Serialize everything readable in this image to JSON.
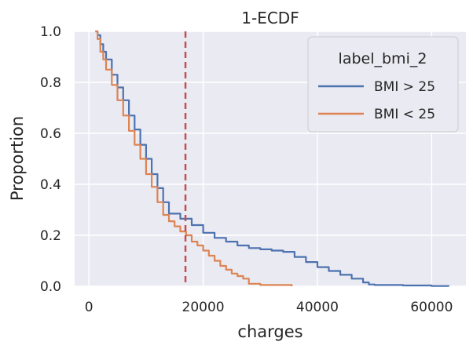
{
  "chart_data": {
    "type": "line",
    "title": "1-ECDF",
    "xlabel": "charges",
    "ylabel": "Proportion",
    "xlim": [
      -2500,
      66000
    ],
    "ylim": [
      0.0,
      1.0
    ],
    "xticks": [
      0,
      20000,
      40000,
      60000
    ],
    "yticks": [
      0.0,
      0.2,
      0.4,
      0.6,
      0.8,
      1.0
    ],
    "xtick_labels": [
      "0",
      "20000",
      "40000",
      "60000"
    ],
    "ytick_labels": [
      "0.0",
      "0.2",
      "0.4",
      "0.6",
      "0.8",
      "1.0"
    ],
    "grid": true,
    "legend": {
      "title": "label_bmi_2",
      "placement": "top-right"
    },
    "vline": {
      "x": 16900,
      "color": "#c44e52",
      "style": "dashed"
    },
    "series": [
      {
        "name": "BMI > 25",
        "color": "#4c72b0",
        "x": [
          1120,
          1500,
          2000,
          2500,
          3000,
          4000,
          5000,
          6000,
          7000,
          8000,
          9000,
          10000,
          11000,
          12000,
          13000,
          14000,
          16000,
          18000,
          20000,
          22000,
          24000,
          26000,
          28000,
          30000,
          32000,
          34000,
          36000,
          38000,
          40000,
          42000,
          44000,
          46000,
          48000,
          49000,
          50000,
          55000,
          60000,
          63000
        ],
        "y": [
          1.0,
          0.985,
          0.95,
          0.92,
          0.89,
          0.83,
          0.78,
          0.73,
          0.67,
          0.615,
          0.555,
          0.5,
          0.44,
          0.385,
          0.33,
          0.285,
          0.265,
          0.24,
          0.21,
          0.19,
          0.175,
          0.16,
          0.15,
          0.145,
          0.14,
          0.135,
          0.115,
          0.095,
          0.075,
          0.06,
          0.045,
          0.03,
          0.015,
          0.007,
          0.005,
          0.003,
          0.001,
          0.0
        ]
      },
      {
        "name": "BMI < 25",
        "color": "#dd8452",
        "x": [
          1120,
          1500,
          2000,
          2500,
          3000,
          4000,
          5000,
          6000,
          7000,
          8000,
          9000,
          10000,
          11000,
          12000,
          13000,
          14000,
          15000,
          16000,
          17000,
          18000,
          19000,
          20000,
          21000,
          22000,
          23000,
          24000,
          25000,
          26000,
          27000,
          28000,
          30000,
          35500
        ],
        "y": [
          1.0,
          0.97,
          0.92,
          0.89,
          0.85,
          0.79,
          0.73,
          0.67,
          0.61,
          0.555,
          0.5,
          0.44,
          0.39,
          0.33,
          0.28,
          0.255,
          0.235,
          0.215,
          0.2,
          0.175,
          0.16,
          0.14,
          0.12,
          0.1,
          0.08,
          0.065,
          0.05,
          0.04,
          0.03,
          0.01,
          0.005,
          0.0
        ]
      }
    ]
  }
}
